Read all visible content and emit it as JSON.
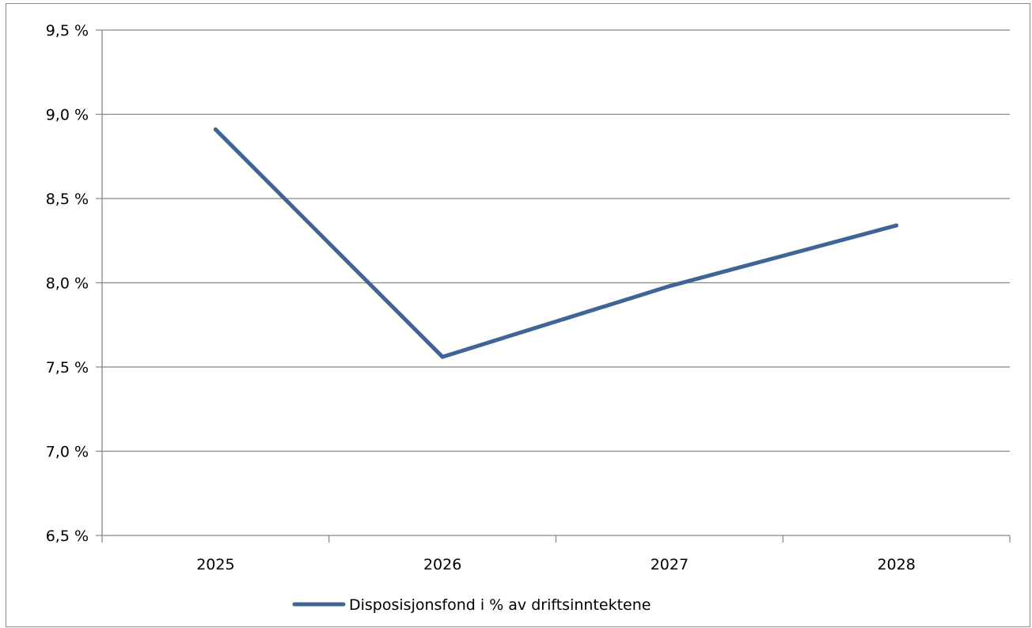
{
  "chart_data": {
    "type": "line",
    "categories": [
      "2025",
      "2026",
      "2027",
      "2028"
    ],
    "series": [
      {
        "name": "Disposisjonsfond i % av driftsinntektene",
        "values": [
          8.91,
          7.56,
          7.98,
          8.34
        ],
        "color": "#3F6596"
      }
    ],
    "yticks": [
      "6,5 %",
      "7,0 %",
      "7,5 %",
      "8,0 %",
      "8,5 %",
      "9,0 %",
      "9,5 %"
    ],
    "ylim": [
      6.5,
      9.5
    ],
    "grid": true,
    "legend": "bottom"
  }
}
